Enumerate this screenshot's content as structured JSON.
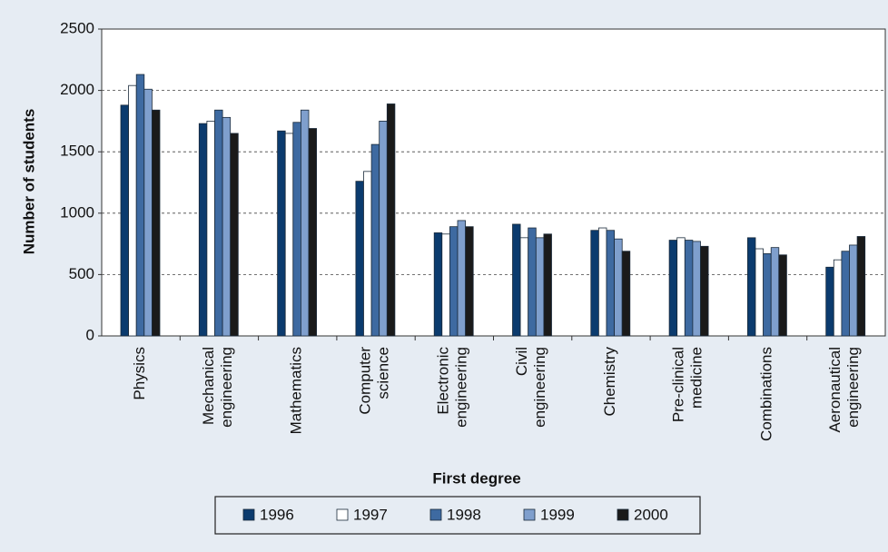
{
  "chart_data": {
    "type": "bar",
    "x_label": "First degree",
    "y_label": "Number of students",
    "categories": [
      "Physics",
      "Mechanical engineering",
      "Mathematics",
      "Computer science",
      "Electronic engineering",
      "Civil engineering",
      "Chemistry",
      "Pre-clinical medicine",
      "Combinations",
      "Aeronautical engineering"
    ],
    "series": [
      {
        "name": "1996",
        "color": "#0b3b6e",
        "values": [
          1880,
          1730,
          1670,
          1260,
          840,
          910,
          860,
          780,
          800,
          560
        ]
      },
      {
        "name": "1997",
        "color": "#ffffff",
        "values": [
          2040,
          1750,
          1650,
          1340,
          830,
          800,
          880,
          800,
          710,
          620
        ]
      },
      {
        "name": "1998",
        "color": "#3e6aa1",
        "values": [
          2130,
          1840,
          1740,
          1560,
          890,
          880,
          860,
          780,
          670,
          690
        ]
      },
      {
        "name": "1999",
        "color": "#7f9fcd",
        "values": [
          2010,
          1780,
          1840,
          1750,
          940,
          800,
          790,
          770,
          720,
          740
        ]
      },
      {
        "name": "2000",
        "color": "#1a1a1a",
        "values": [
          1840,
          1650,
          1690,
          1890,
          890,
          830,
          690,
          730,
          660,
          810
        ]
      }
    ],
    "ylim": [
      0,
      2500
    ],
    "yticks": [
      0,
      500,
      1000,
      1500,
      2000,
      2500
    ],
    "grid": true,
    "legend": "bottom"
  }
}
